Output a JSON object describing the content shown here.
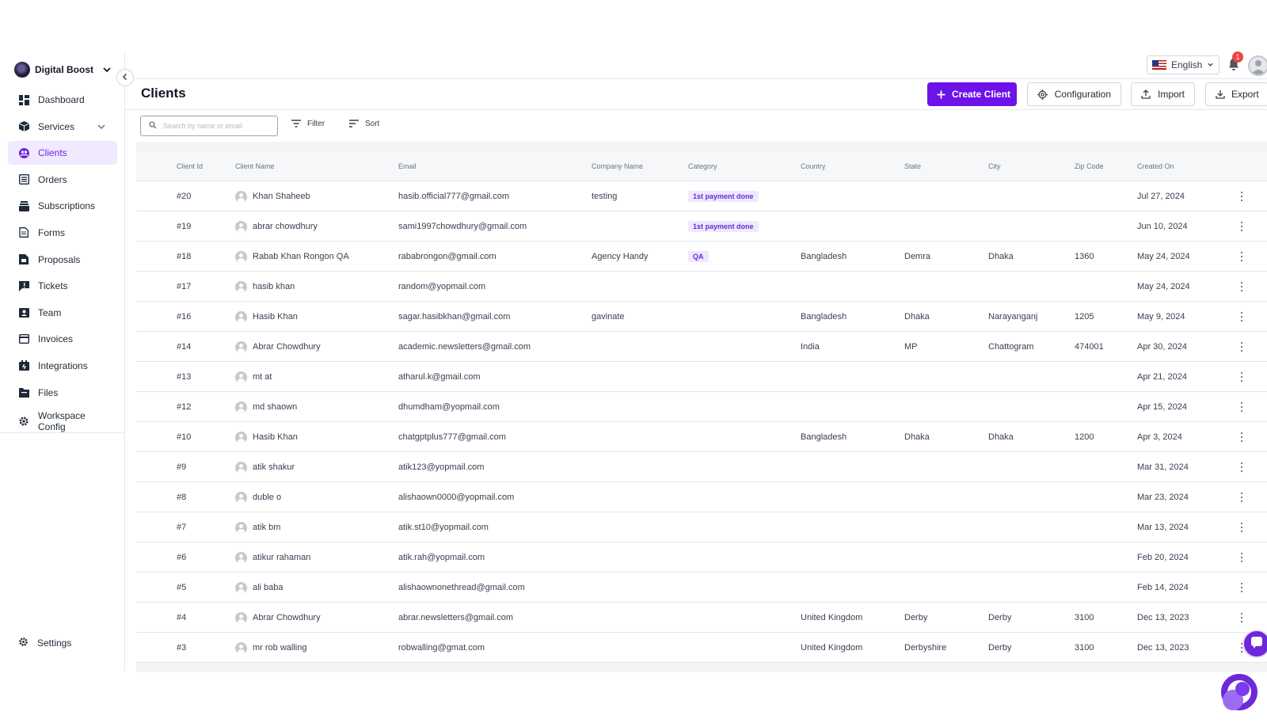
{
  "workspace": {
    "name": "Digital Boost"
  },
  "sidebar": {
    "items": [
      {
        "label": "Dashboard",
        "icon": "dashboard-icon",
        "active": false
      },
      {
        "label": "Services",
        "icon": "box-icon",
        "active": false,
        "has_submenu": true
      },
      {
        "label": "Clients",
        "icon": "clients-icon",
        "active": true
      },
      {
        "label": "Orders",
        "icon": "orders-icon",
        "active": false
      },
      {
        "label": "Subscriptions",
        "icon": "subscriptions-icon",
        "active": false
      },
      {
        "label": "Forms",
        "icon": "forms-icon",
        "active": false
      },
      {
        "label": "Proposals",
        "icon": "proposals-icon",
        "active": false
      },
      {
        "label": "Tickets",
        "icon": "tickets-icon",
        "active": false
      },
      {
        "label": "Team",
        "icon": "team-icon",
        "active": false
      },
      {
        "label": "Invoices",
        "icon": "invoices-icon",
        "active": false
      },
      {
        "label": "Integrations",
        "icon": "integrations-icon",
        "active": false
      },
      {
        "label": "Files",
        "icon": "files-icon",
        "active": false
      },
      {
        "label": "Workspace Config",
        "icon": "workspace-config-icon",
        "active": false
      }
    ],
    "settings_label": "Settings"
  },
  "topbar": {
    "language": "English",
    "notification_count": "1"
  },
  "header": {
    "title": "Clients",
    "create_label": "Create Client",
    "config_label": "Configuration",
    "import_label": "Import",
    "export_label": "Export"
  },
  "toolbar": {
    "search_placeholder": "Search by name or email",
    "filter_label": "Filter",
    "sort_label": "Sort"
  },
  "table": {
    "columns": [
      "Client Id",
      "Client Name",
      "Email",
      "Company Name",
      "Category",
      "Country",
      "State",
      "City",
      "Zip Code",
      "Created On"
    ],
    "rows": [
      {
        "id": "#20",
        "name": "Khan Shaheeb",
        "email": "hasib.official777@gmail.com",
        "company": "testing",
        "category": "1st payment done",
        "country": "",
        "state": "",
        "city": "",
        "zip": "",
        "created": "Jul 27, 2024"
      },
      {
        "id": "#19",
        "name": "abrar chowdhury",
        "email": "sami1997chowdhury@gmail.com",
        "company": "",
        "category": "1st payment done",
        "country": "",
        "state": "",
        "city": "",
        "zip": "",
        "created": "Jun 10, 2024"
      },
      {
        "id": "#18",
        "name": "Rabab Khan Rongon QA",
        "email": "rababrongon@gmail.com",
        "company": "Agency Handy",
        "category": "QA",
        "country": "Bangladesh",
        "state": "Demra",
        "city": "Dhaka",
        "zip": "1360",
        "created": "May 24, 2024"
      },
      {
        "id": "#17",
        "name": "hasib khan",
        "email": "random@yopmail.com",
        "company": "",
        "category": "",
        "country": "",
        "state": "",
        "city": "",
        "zip": "",
        "created": "May 24, 2024"
      },
      {
        "id": "#16",
        "name": "Hasib Khan",
        "email": "sagar.hasibkhan@gmail.com",
        "company": "gavinate",
        "category": "",
        "country": "Bangladesh",
        "state": "Dhaka",
        "city": "Narayanganj",
        "zip": "1205",
        "created": "May 9, 2024"
      },
      {
        "id": "#14",
        "name": "Abrar Chowdhury",
        "email": "academic.newsletters@gmail.com",
        "company": "",
        "category": "",
        "country": "India",
        "state": "MP",
        "city": "Chattogram",
        "zip": "474001",
        "created": "Apr 30, 2024"
      },
      {
        "id": "#13",
        "name": "mt at",
        "email": "atharul.k@gmail.com",
        "company": "",
        "category": "",
        "country": "",
        "state": "",
        "city": "",
        "zip": "",
        "created": "Apr 21, 2024"
      },
      {
        "id": "#12",
        "name": "md shaown",
        "email": "dhumdham@yopmail.com",
        "company": "",
        "category": "",
        "country": "",
        "state": "",
        "city": "",
        "zip": "",
        "created": "Apr 15, 2024"
      },
      {
        "id": "#10",
        "name": "Hasib Khan",
        "email": "chatgptplus777@gmail.com",
        "company": "",
        "category": "",
        "country": "Bangladesh",
        "state": "Dhaka",
        "city": "Dhaka",
        "zip": "1200",
        "created": "Apr 3, 2024"
      },
      {
        "id": "#9",
        "name": "atik shakur",
        "email": "atik123@yopmail.com",
        "company": "",
        "category": "",
        "country": "",
        "state": "",
        "city": "",
        "zip": "",
        "created": "Mar 31, 2024"
      },
      {
        "id": "#8",
        "name": "duble o",
        "email": "alishaown0000@yopmail.com",
        "company": "",
        "category": "",
        "country": "",
        "state": "",
        "city": "",
        "zip": "",
        "created": "Mar 23, 2024"
      },
      {
        "id": "#7",
        "name": "atik bm",
        "email": "atik.st10@yopmail.com",
        "company": "",
        "category": "",
        "country": "",
        "state": "",
        "city": "",
        "zip": "",
        "created": "Mar 13, 2024"
      },
      {
        "id": "#6",
        "name": "atikur rahaman",
        "email": "atik.rah@yopmail.com",
        "company": "",
        "category": "",
        "country": "",
        "state": "",
        "city": "",
        "zip": "",
        "created": "Feb 20, 2024"
      },
      {
        "id": "#5",
        "name": "ali baba",
        "email": "alishaownonethread@gmail.com",
        "company": "",
        "category": "",
        "country": "",
        "state": "",
        "city": "",
        "zip": "",
        "created": "Feb 14, 2024"
      },
      {
        "id": "#4",
        "name": "Abrar Chowdhury",
        "email": "abrar.newsletters@gmail.com",
        "company": "",
        "category": "",
        "country": "United Kingdom",
        "state": "Derby",
        "city": "Derby",
        "zip": "3100",
        "created": "Dec 13, 2023"
      },
      {
        "id": "#3",
        "name": "mr rob walling",
        "email": "robwalling@gmat.com",
        "company": "",
        "category": "",
        "country": "United Kingdom",
        "state": "Derbyshire",
        "city": "Derby",
        "zip": "3100",
        "created": "Dec 13, 2023"
      }
    ]
  },
  "colors": {
    "accent": "#6d12e8",
    "active_nav_bg": "#f1e9ff",
    "badge_bg": "#ede9fe",
    "badge_text": "#6d28d9"
  }
}
